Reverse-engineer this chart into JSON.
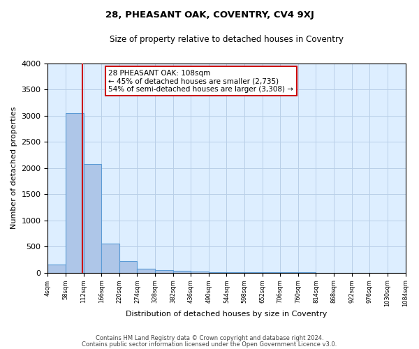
{
  "title": "28, PHEASANT OAK, COVENTRY, CV4 9XJ",
  "subtitle": "Size of property relative to detached houses in Coventry",
  "xlabel": "Distribution of detached houses by size in Coventry",
  "ylabel": "Number of detached properties",
  "footer_line1": "Contains HM Land Registry data © Crown copyright and database right 2024.",
  "footer_line2": "Contains public sector information licensed under the Open Government Licence v3.0.",
  "bin_edges": [
    4,
    58,
    112,
    166,
    220,
    274,
    328,
    382,
    436,
    490,
    544,
    598,
    652,
    706,
    760,
    814,
    868,
    922,
    976,
    1030,
    1084
  ],
  "bin_labels": [
    "4sqm",
    "58sqm",
    "112sqm",
    "166sqm",
    "220sqm",
    "274sqm",
    "328sqm",
    "382sqm",
    "436sqm",
    "490sqm",
    "544sqm",
    "598sqm",
    "652sqm",
    "706sqm",
    "760sqm",
    "814sqm",
    "868sqm",
    "922sqm",
    "976sqm",
    "1030sqm",
    "1084sqm"
  ],
  "bar_heights": [
    150,
    3050,
    2070,
    550,
    220,
    75,
    55,
    30,
    20,
    10,
    8,
    5,
    4,
    3,
    3,
    2,
    2,
    2,
    1,
    1
  ],
  "bar_color": "#aec6e8",
  "bar_edge_color": "#5b9bd5",
  "marker_value": 108,
  "marker_color": "#cc0000",
  "ylim": [
    0,
    4000
  ],
  "yticks": [
    0,
    500,
    1000,
    1500,
    2000,
    2500,
    3000,
    3500,
    4000
  ],
  "annotation_line1": "28 PHEASANT OAK: 108sqm",
  "annotation_line2": "← 45% of detached houses are smaller (2,735)",
  "annotation_line3": "54% of semi-detached houses are larger (3,308) →",
  "annotation_box_color": "#ffffff",
  "annotation_box_edge": "#cc0000",
  "fig_bg": "#ffffff",
  "plot_bg": "#ddeeff",
  "grid_color": "#b8cfe8"
}
